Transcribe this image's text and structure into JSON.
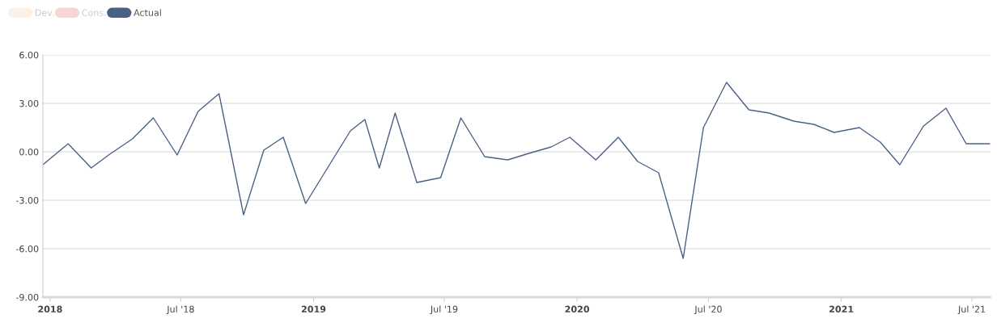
{
  "chart_data": {
    "type": "line",
    "x": [
      "2017-12-22",
      "2018-01-26",
      "2018-02-27",
      "2018-03-23",
      "2018-04-25",
      "2018-05-24",
      "2018-06-26",
      "2018-07-25",
      "2018-08-23",
      "2018-09-26",
      "2018-10-24",
      "2018-11-20",
      "2018-12-21",
      "2019-02-21",
      "2019-03-13",
      "2019-04-02",
      "2019-04-24",
      "2019-05-24",
      "2019-06-26",
      "2019-07-24",
      "2019-08-26",
      "2019-09-27",
      "2019-10-26",
      "2019-11-26",
      "2019-12-22",
      "2020-01-27",
      "2020-02-27",
      "2020-03-25",
      "2020-04-23",
      "2020-05-27",
      "2020-06-24",
      "2020-07-26",
      "2020-08-26",
      "2020-09-23",
      "2020-10-27",
      "2020-11-24",
      "2020-12-22",
      "2021-01-26",
      "2021-02-24",
      "2021-03-23",
      "2021-04-25",
      "2021-05-26",
      "2021-06-23",
      "2021-07-26"
    ],
    "series": [
      {
        "name": "Dev.",
        "color": "#fdf1e6",
        "values": [
          null,
          null,
          null,
          null,
          null,
          null,
          null,
          null,
          null,
          null,
          null,
          null,
          null,
          null,
          null,
          null,
          null,
          null,
          null,
          null,
          null,
          null,
          null,
          null,
          null,
          null,
          null,
          null,
          null,
          null,
          null,
          null,
          null,
          null,
          null,
          null,
          null,
          null,
          null,
          null,
          null,
          null,
          null,
          null
        ]
      },
      {
        "name": "Cons.",
        "color": "#f5d6d3",
        "values": [
          null,
          null,
          null,
          null,
          null,
          null,
          null,
          null,
          null,
          null,
          null,
          null,
          null,
          null,
          null,
          null,
          null,
          null,
          null,
          null,
          null,
          null,
          null,
          null,
          null,
          null,
          null,
          null,
          null,
          null,
          null,
          null,
          null,
          null,
          null,
          null,
          null,
          null,
          null,
          null,
          null,
          null,
          null,
          null
        ]
      },
      {
        "name": "Actual",
        "color": "#4a6185",
        "values": [
          -0.8,
          0.5,
          -1.0,
          -0.2,
          0.8,
          2.1,
          -0.2,
          2.5,
          3.6,
          -3.9,
          0.1,
          0.9,
          -3.2,
          1.3,
          2.0,
          -1.0,
          2.4,
          -1.9,
          -1.6,
          2.1,
          -0.3,
          -0.5,
          -0.1,
          0.3,
          0.9,
          -0.5,
          0.9,
          -0.6,
          -1.3,
          -6.6,
          1.5,
          4.3,
          2.6,
          2.4,
          1.9,
          1.7,
          1.2,
          1.5,
          0.6,
          -0.8,
          1.6,
          2.7,
          0.5,
          0.5
        ]
      }
    ],
    "xlim": [
      "2017-12-22",
      "2021-07-26"
    ],
    "xticks": [
      {
        "value": "2018-01-01",
        "label": "2018"
      },
      {
        "value": "2018-07-01",
        "label": "Jul '18"
      },
      {
        "value": "2019-01-01",
        "label": "2019"
      },
      {
        "value": "2019-07-01",
        "label": "Jul '19"
      },
      {
        "value": "2020-01-01",
        "label": "2020"
      },
      {
        "value": "2020-07-01",
        "label": "Jul '20"
      },
      {
        "value": "2021-01-01",
        "label": "2021"
      },
      {
        "value": "2021-07-01",
        "label": "Jul '21"
      }
    ],
    "ylim": [
      -9,
      6
    ],
    "yticks": [
      {
        "value": 6,
        "label": "6.00"
      },
      {
        "value": 3,
        "label": "3.00"
      },
      {
        "value": 0,
        "label": "0.00"
      },
      {
        "value": -3,
        "label": "-3.00"
      },
      {
        "value": -6,
        "label": "-6.00"
      },
      {
        "value": -9,
        "label": "-9.00"
      }
    ],
    "grid": "y",
    "legend": "top left",
    "marker": "none",
    "line_style": "solid"
  }
}
